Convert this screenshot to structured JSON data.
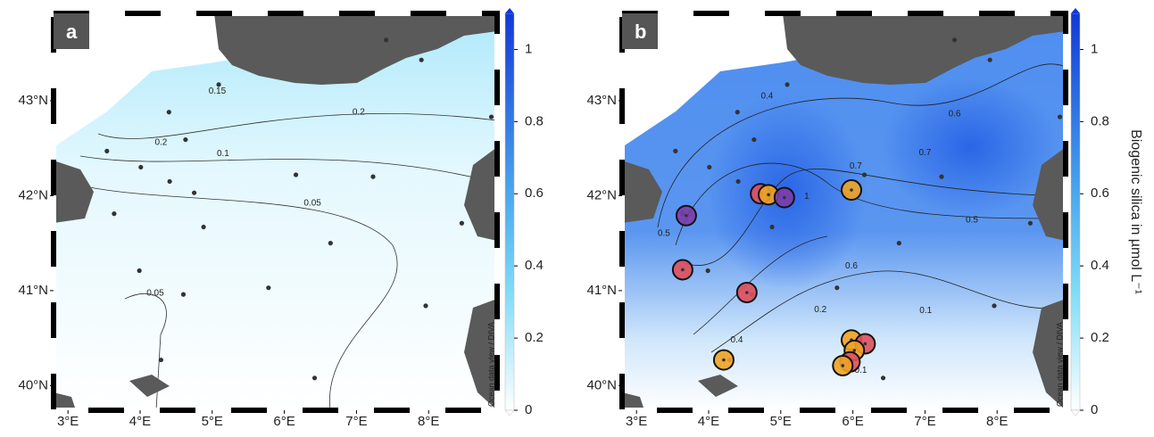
{
  "figure": {
    "colorbar": {
      "label": "Biogenic silica in µmol L⁻¹",
      "clim": [
        0,
        1.1
      ],
      "ticks": [
        0,
        0.2,
        0.4,
        0.6,
        0.8,
        1
      ]
    },
    "credit": "Ocean data view / DIVA"
  },
  "chart_data": [
    {
      "type": "map",
      "panel_label": "a",
      "xlim": [
        2.8,
        8.95
      ],
      "ylim": [
        39.74,
        43.92
      ],
      "xticks": [
        {
          "value": 3,
          "label": "3°E"
        },
        {
          "value": 4,
          "label": "4°E"
        },
        {
          "value": 5,
          "label": "5°E"
        },
        {
          "value": 6,
          "label": "6°E"
        },
        {
          "value": 7,
          "label": "7°E"
        },
        {
          "value": 8,
          "label": "8°E"
        }
      ],
      "yticks": [
        {
          "value": 40,
          "label": "40°N"
        },
        {
          "value": 41,
          "label": "41°N"
        },
        {
          "value": 42,
          "label": "42°N"
        },
        {
          "value": 43,
          "label": "43°N"
        }
      ],
      "stations": {
        "lon": [
          7.41,
          7.9,
          5.09,
          4.4,
          4.63,
          3.54,
          8.87,
          4.01,
          7.23,
          6.16,
          4.41,
          4.75,
          3.64,
          8.46,
          4.88,
          6.64,
          3.99,
          4.6,
          5.78,
          7.96,
          4.29,
          6.42
        ],
        "lat": [
          43.64,
          43.43,
          43.17,
          42.88,
          42.59,
          42.47,
          42.83,
          42.3,
          42.2,
          42.22,
          42.15,
          42.03,
          41.81,
          41.71,
          41.67,
          41.5,
          41.21,
          40.96,
          41.03,
          40.84,
          40.27,
          40.08
        ]
      },
      "contour_labels": {
        "lon": [
          5.07,
          4.29,
          7.03,
          5.15,
          6.39,
          4.21
        ],
        "lat": [
          43.1,
          42.56,
          42.88,
          42.44,
          41.92,
          40.97
        ],
        "values": [
          0.15,
          0.2,
          0.2,
          0.1,
          0.05,
          0.05
        ]
      }
    },
    {
      "type": "map",
      "panel_label": "b",
      "xlim": [
        2.8,
        8.95
      ],
      "ylim": [
        39.74,
        43.92
      ],
      "xticks": [
        {
          "value": 3,
          "label": "3°E"
        },
        {
          "value": 4,
          "label": "4°E"
        },
        {
          "value": 5,
          "label": "5°E"
        },
        {
          "value": 6,
          "label": "6°E"
        },
        {
          "value": 7,
          "label": "7°E"
        },
        {
          "value": 8,
          "label": "8°E"
        }
      ],
      "yticks": [
        {
          "value": 40,
          "label": "40°N"
        },
        {
          "value": 41,
          "label": "41°N"
        },
        {
          "value": 42,
          "label": "42°N"
        },
        {
          "value": 43,
          "label": "43°N"
        }
      ],
      "stations": {
        "lon": [
          7.41,
          7.9,
          5.09,
          4.4,
          4.63,
          3.54,
          8.87,
          4.01,
          7.23,
          6.16,
          4.41,
          4.75,
          3.64,
          8.46,
          4.88,
          6.64,
          3.99,
          4.6,
          5.78,
          7.96,
          4.29,
          6.42
        ],
        "lat": [
          43.64,
          43.43,
          43.17,
          42.88,
          42.59,
          42.47,
          42.83,
          42.3,
          42.2,
          42.22,
          42.15,
          42.03,
          41.81,
          41.71,
          41.67,
          41.5,
          41.21,
          40.96,
          41.03,
          40.84,
          40.27,
          40.08
        ]
      },
      "samples": {
        "lon": [
          3.69,
          4.72,
          4.83,
          5.05,
          5.98,
          3.64,
          4.53,
          4.21,
          5.98,
          6.17,
          6.02,
          5.96,
          5.86
        ],
        "lat": [
          41.79,
          42.02,
          42.01,
          41.98,
          42.06,
          41.22,
          40.98,
          40.27,
          40.48,
          40.44,
          40.37,
          40.25,
          40.21
        ],
        "colors": [
          "#7d3ca8",
          "#e04f5c",
          "#f0a324",
          "#7d3ca8",
          "#f0a324",
          "#e04f5c",
          "#e04f5c",
          "#f0a324",
          "#f0a324",
          "#e04f5c",
          "#f0a324",
          "#e04f5c",
          "#f0a324"
        ]
      },
      "contour_labels": {
        "lon": [
          4.81,
          7.41,
          7.0,
          6.04,
          5.36,
          3.69,
          3.38,
          7.65,
          5.98,
          5.55,
          4.39,
          7.01,
          6.11
        ],
        "lat": [
          43.05,
          42.86,
          42.45,
          42.31,
          41.99,
          41.81,
          41.6,
          41.74,
          41.26,
          40.8,
          40.48,
          40.79,
          40.16
        ],
        "values": [
          0.4,
          0.6,
          0.7,
          0.7,
          1.0,
          0.6,
          0.5,
          0.5,
          0.6,
          0.2,
          0.4,
          0.1,
          0.1
        ]
      }
    }
  ]
}
